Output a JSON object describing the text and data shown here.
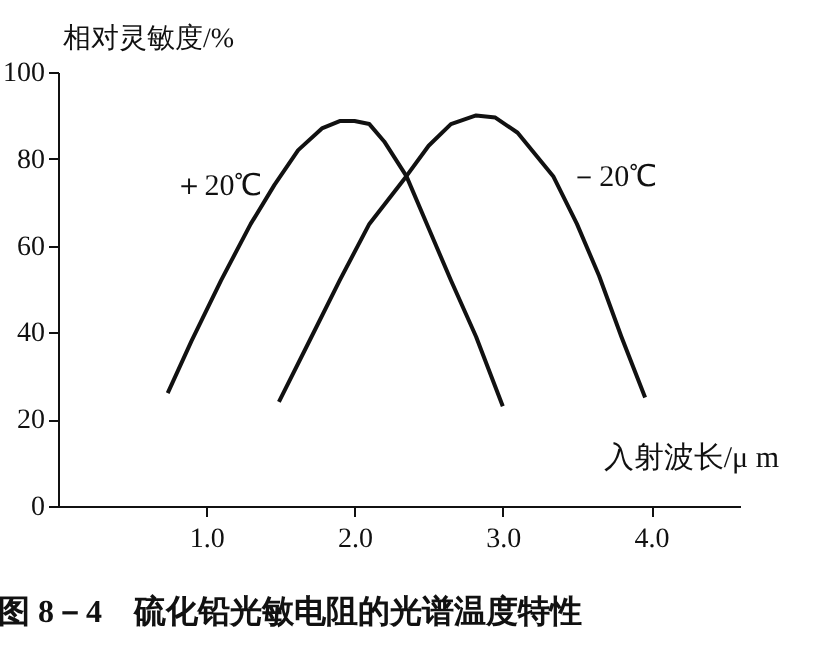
{
  "chart_data": {
    "type": "line",
    "xlabel": "入射波长/μ m",
    "ylabel": "相对灵敏度/%",
    "annotations": [
      "图 8－4　硫化铅光敏电阻的光谱温度特性"
    ],
    "xlim": [
      0,
      4.6
    ],
    "ylim": [
      0,
      100
    ],
    "xticks": [
      {
        "value": 1,
        "label": "1.0"
      },
      {
        "value": 2,
        "label": "2.0"
      },
      {
        "value": 3,
        "label": "3.0"
      },
      {
        "value": 4,
        "label": "4.0"
      }
    ],
    "yticks": [
      0,
      20,
      40,
      60,
      80,
      100
    ],
    "grid": false,
    "marker": "none",
    "line_style": "solid",
    "series": [
      {
        "name": "＋20℃",
        "color": "#111111",
        "x": [
          0.74,
          0.9,
          1.1,
          1.3,
          1.46,
          1.62,
          1.78,
          1.9,
          2.0,
          2.1,
          2.2,
          2.35,
          2.5,
          2.65,
          2.82,
          3.0
        ],
        "values": [
          26,
          38,
          52,
          65,
          74,
          82,
          87,
          88.7,
          88.7,
          88,
          84,
          76,
          64,
          52,
          39,
          23
        ]
      },
      {
        "name": "－20℃",
        "color": "#111111",
        "x": [
          1.49,
          1.71,
          1.9,
          2.1,
          2.35,
          2.5,
          2.65,
          2.82,
          2.95,
          3.1,
          3.34,
          3.5,
          3.65,
          3.8,
          3.96
        ],
        "values": [
          24,
          39,
          52,
          65,
          76,
          83,
          88,
          90,
          89.5,
          86,
          76,
          65,
          53,
          39,
          25
        ]
      }
    ]
  }
}
